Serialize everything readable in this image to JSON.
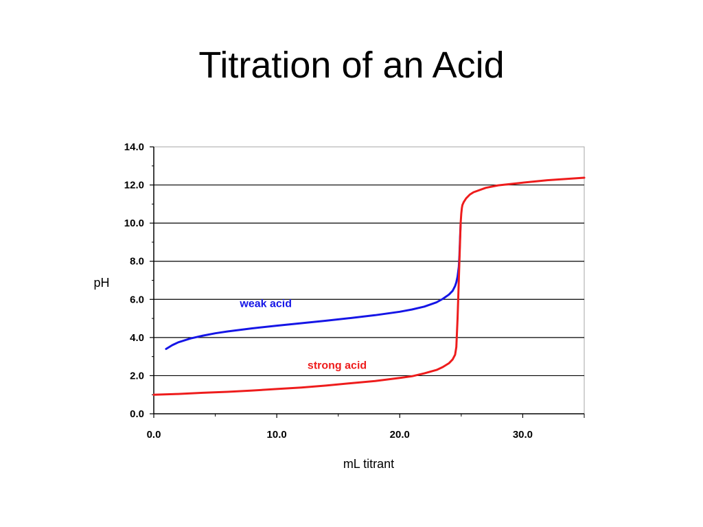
{
  "slide": {
    "title": "Titration of an Acid"
  },
  "colors": {
    "weak_acid": "#1515e6",
    "strong_acid": "#ee1c1c",
    "gridline": "#000000",
    "axis": "#000000",
    "frame": "#a6a6a6"
  },
  "chart_data": {
    "type": "line",
    "title": "Titration of an Acid",
    "xlabel": "mL titrant",
    "ylabel": "pH",
    "xlim": [
      0,
      35
    ],
    "ylim": [
      0,
      14
    ],
    "x_ticks": [
      0,
      10,
      20,
      30
    ],
    "x_tick_labels": [
      "0.0",
      "10.0",
      "20.0",
      "30.0"
    ],
    "y_ticks": [
      0,
      2,
      4,
      6,
      8,
      10,
      12,
      14
    ],
    "y_tick_labels": [
      "0.0",
      "2.0",
      "4.0",
      "6.0",
      "8.0",
      "10.0",
      "12.0",
      "14.0"
    ],
    "grid": "horizontal",
    "legend": "none",
    "series": [
      {
        "name": "weak acid",
        "color": "#1515e6",
        "label_at": [
          7,
          5.6
        ],
        "x": [
          1.0,
          1.5,
          2.0,
          3.0,
          4.0,
          5.0,
          6.0,
          8.0,
          10.0,
          12.0,
          14.0,
          16.0,
          18.0,
          20.0,
          21.0,
          22.0,
          23.0,
          23.5,
          24.0,
          24.3,
          24.5,
          24.6,
          24.7,
          24.8,
          24.85,
          24.9,
          24.95
        ],
        "y": [
          3.4,
          3.6,
          3.75,
          3.95,
          4.1,
          4.22,
          4.32,
          4.48,
          4.62,
          4.75,
          4.88,
          5.02,
          5.17,
          5.35,
          5.47,
          5.62,
          5.85,
          6.03,
          6.25,
          6.45,
          6.7,
          6.9,
          7.2,
          7.7,
          8.3,
          9.2,
          10.0
        ]
      },
      {
        "name": "strong acid",
        "color": "#ee1c1c",
        "label_at": [
          12.5,
          2.35
        ],
        "x": [
          0.0,
          2.0,
          4.0,
          6.0,
          8.0,
          10.0,
          12.0,
          14.0,
          16.0,
          18.0,
          20.0,
          21.0,
          22.0,
          23.0,
          23.5,
          24.0,
          24.3,
          24.5,
          24.6,
          24.7,
          24.8,
          24.9,
          24.95,
          25.0,
          25.05,
          25.1,
          25.2,
          25.4,
          25.7,
          26.0,
          27.0,
          28.0,
          30.0,
          32.0,
          35.0
        ],
        "y": [
          1.0,
          1.04,
          1.1,
          1.15,
          1.22,
          1.3,
          1.38,
          1.48,
          1.6,
          1.72,
          1.88,
          1.97,
          2.12,
          2.3,
          2.45,
          2.65,
          2.85,
          3.1,
          3.5,
          5.0,
          7.0,
          9.0,
          10.0,
          10.5,
          10.8,
          10.95,
          11.1,
          11.3,
          11.5,
          11.62,
          11.85,
          11.98,
          12.12,
          12.25,
          12.38
        ]
      }
    ]
  }
}
